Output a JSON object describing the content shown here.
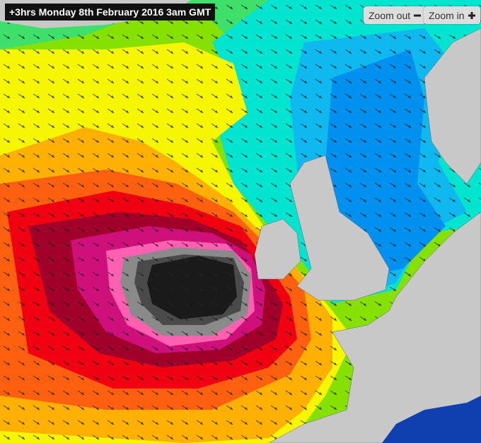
{
  "header": {
    "title": "+3hrs Monday 8th February 2016 3am GMT"
  },
  "controls": {
    "zoom_out": "Zoom out",
    "zoom_in": "Zoom in"
  }
}
